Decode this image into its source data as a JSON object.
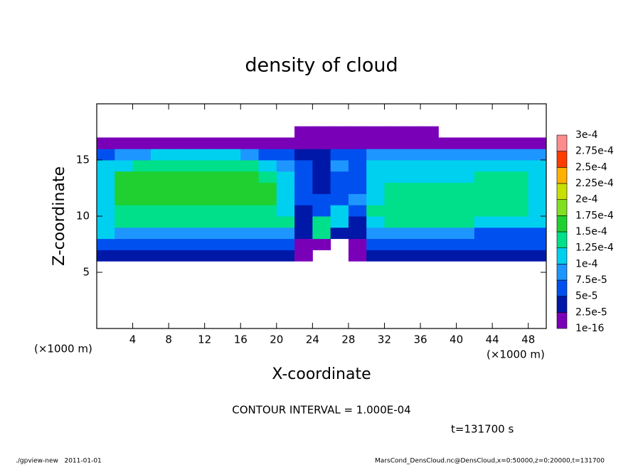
{
  "chart_data": {
    "type": "contour",
    "title": "density of cloud",
    "xlabel": "X-coordinate",
    "ylabel": "Z-coordinate",
    "xunit": "(×1000 m)",
    "yunit": "(×1000 m)",
    "contour_interval": "CONTOUR INTERVAL = 1.000E-04",
    "time": "t=131700 s",
    "footer_left": "./gpview-new   2011-01-01",
    "footer_right": "MarsCond_DensCloud.nc@DensCloud,x=0:50000,z=0:20000,t=131700",
    "xlim": [
      0,
      50
    ],
    "ylim": [
      0,
      20
    ],
    "xticks": [
      4,
      8,
      12,
      16,
      20,
      24,
      28,
      32,
      36,
      40,
      44,
      48
    ],
    "yticks": [
      5,
      10,
      15
    ],
    "levels": [
      {
        "value": 1e-16,
        "label": "1e-16"
      },
      {
        "value": 2.5e-05,
        "label": "2.5e-5"
      },
      {
        "value": 5e-05,
        "label": "5e-5"
      },
      {
        "value": 7.5e-05,
        "label": "7.5e-5"
      },
      {
        "value": 0.0001,
        "label": "1e-4"
      },
      {
        "value": 0.000125,
        "label": "1.25e-4"
      },
      {
        "value": 0.00015,
        "label": "1.5e-4"
      },
      {
        "value": 0.000175,
        "label": "1.75e-4"
      },
      {
        "value": 0.0002,
        "label": "2e-4"
      },
      {
        "value": 0.000225,
        "label": "2.25e-4"
      },
      {
        "value": 0.00025,
        "label": "2.5e-4"
      },
      {
        "value": 0.000275,
        "label": "2.75e-4"
      },
      {
        "value": 0.0003,
        "label": "3e-4"
      }
    ],
    "colors": [
      "#7a00b8",
      "#0018a8",
      "#0050f0",
      "#1e96ff",
      "#00d0f0",
      "#00e08a",
      "#20d030",
      "#80e020",
      "#c8e000",
      "#ffb000",
      "#ff3c00",
      "#ff8c8c"
    ],
    "x": [
      1,
      3,
      5,
      7,
      9,
      11,
      13,
      15,
      17,
      19,
      21,
      23,
      25,
      27,
      29,
      31,
      33,
      35,
      37,
      39,
      41,
      43,
      45,
      47,
      49
    ],
    "z": [
      6.5,
      7.5,
      8.5,
      9.5,
      10.5,
      11.5,
      12.5,
      13.5,
      14.5,
      15.5,
      16.5,
      17.5
    ],
    "z_values": [
      [
        3e-05,
        3e-05,
        3e-05,
        3e-05,
        3e-05,
        3e-05,
        3e-05,
        3e-05,
        3e-05,
        3e-05,
        3e-05,
        1e-05,
        null,
        null,
        1e-05,
        3e-05,
        3e-05,
        3e-05,
        3e-05,
        3e-05,
        3e-05,
        3e-05,
        3e-05,
        3e-05,
        3e-05
      ],
      [
        6e-05,
        6e-05,
        6e-05,
        6e-05,
        6e-05,
        6e-05,
        6e-05,
        6e-05,
        6e-05,
        6e-05,
        6e-05,
        1e-05,
        1e-05,
        null,
        1e-05,
        6e-05,
        6e-05,
        6e-05,
        6e-05,
        6e-05,
        6e-05,
        6e-05,
        6e-05,
        6e-05,
        6e-05
      ],
      [
        0.00011,
        8e-05,
        8e-05,
        8e-05,
        8e-05,
        8e-05,
        8e-05,
        8e-05,
        8e-05,
        8e-05,
        8e-05,
        3e-05,
        0.00014,
        3e-05,
        3e-05,
        8e-05,
        8e-05,
        8e-05,
        8e-05,
        8e-05,
        8e-05,
        6e-05,
        6e-05,
        6e-05,
        6e-05
      ],
      [
        0.00011,
        0.00014,
        0.00014,
        0.00014,
        0.00014,
        0.00014,
        0.00014,
        0.00014,
        0.00014,
        0.00014,
        0.00014,
        3e-05,
        0.00014,
        0.00011,
        3e-05,
        0.00011,
        0.00014,
        0.00014,
        0.00014,
        0.00014,
        0.00014,
        0.00011,
        0.00011,
        0.00011,
        0.00011
      ],
      [
        0.00011,
        0.00014,
        0.00014,
        0.00014,
        0.00014,
        0.00014,
        0.00014,
        0.00014,
        0.00014,
        0.00014,
        0.00011,
        3e-05,
        6e-05,
        0.00011,
        6e-05,
        0.00014,
        0.00014,
        0.00014,
        0.00014,
        0.00014,
        0.00014,
        0.00014,
        0.00014,
        0.00014,
        0.00011
      ],
      [
        0.00011,
        0.00016,
        0.00016,
        0.00016,
        0.00016,
        0.00016,
        0.00016,
        0.00016,
        0.00016,
        0.00016,
        0.00011,
        6e-05,
        6e-05,
        6e-05,
        8e-05,
        0.00011,
        0.00014,
        0.00014,
        0.00014,
        0.00014,
        0.00014,
        0.00014,
        0.00014,
        0.00014,
        0.00011
      ],
      [
        0.00011,
        0.00016,
        0.00016,
        0.00016,
        0.00016,
        0.00016,
        0.00016,
        0.00016,
        0.00016,
        0.00016,
        0.00011,
        6e-05,
        3e-05,
        6e-05,
        6e-05,
        0.00011,
        0.00014,
        0.00014,
        0.00014,
        0.00014,
        0.00014,
        0.00014,
        0.00014,
        0.00014,
        0.00011
      ],
      [
        0.00011,
        0.00016,
        0.00016,
        0.00016,
        0.00016,
        0.00016,
        0.00016,
        0.00016,
        0.00016,
        0.00014,
        0.00011,
        6e-05,
        3e-05,
        6e-05,
        6e-05,
        0.00011,
        0.00011,
        0.00011,
        0.00011,
        0.00011,
        0.00011,
        0.00014,
        0.00014,
        0.00014,
        0.00011
      ],
      [
        0.00011,
        0.00011,
        0.00014,
        0.00014,
        0.00014,
        0.00014,
        0.00014,
        0.00014,
        0.00014,
        0.00011,
        8e-05,
        6e-05,
        3e-05,
        8e-05,
        6e-05,
        0.00011,
        0.00011,
        0.00011,
        0.00011,
        0.00011,
        0.00011,
        0.00011,
        0.00011,
        0.00011,
        0.00011
      ],
      [
        6e-05,
        8e-05,
        8e-05,
        0.00011,
        0.00011,
        0.00011,
        0.00011,
        0.00011,
        8e-05,
        6e-05,
        6e-05,
        3e-05,
        3e-05,
        6e-05,
        6e-05,
        8e-05,
        8e-05,
        8e-05,
        8e-05,
        8e-05,
        8e-05,
        8e-05,
        8e-05,
        8e-05,
        8e-05
      ],
      [
        1e-05,
        1e-05,
        1e-05,
        1e-05,
        1e-05,
        1e-05,
        1e-05,
        1e-05,
        1e-05,
        1e-05,
        1e-05,
        1e-05,
        1e-05,
        1e-05,
        1e-05,
        1e-05,
        1e-05,
        1e-05,
        1e-05,
        1e-05,
        1e-05,
        1e-05,
        1e-05,
        1e-05,
        1e-05
      ],
      [
        null,
        null,
        null,
        null,
        null,
        null,
        null,
        null,
        null,
        null,
        null,
        1e-05,
        1e-05,
        1e-05,
        1e-05,
        1e-05,
        1e-05,
        1e-05,
        1e-05,
        null,
        null,
        null,
        null,
        null,
        null
      ]
    ]
  }
}
